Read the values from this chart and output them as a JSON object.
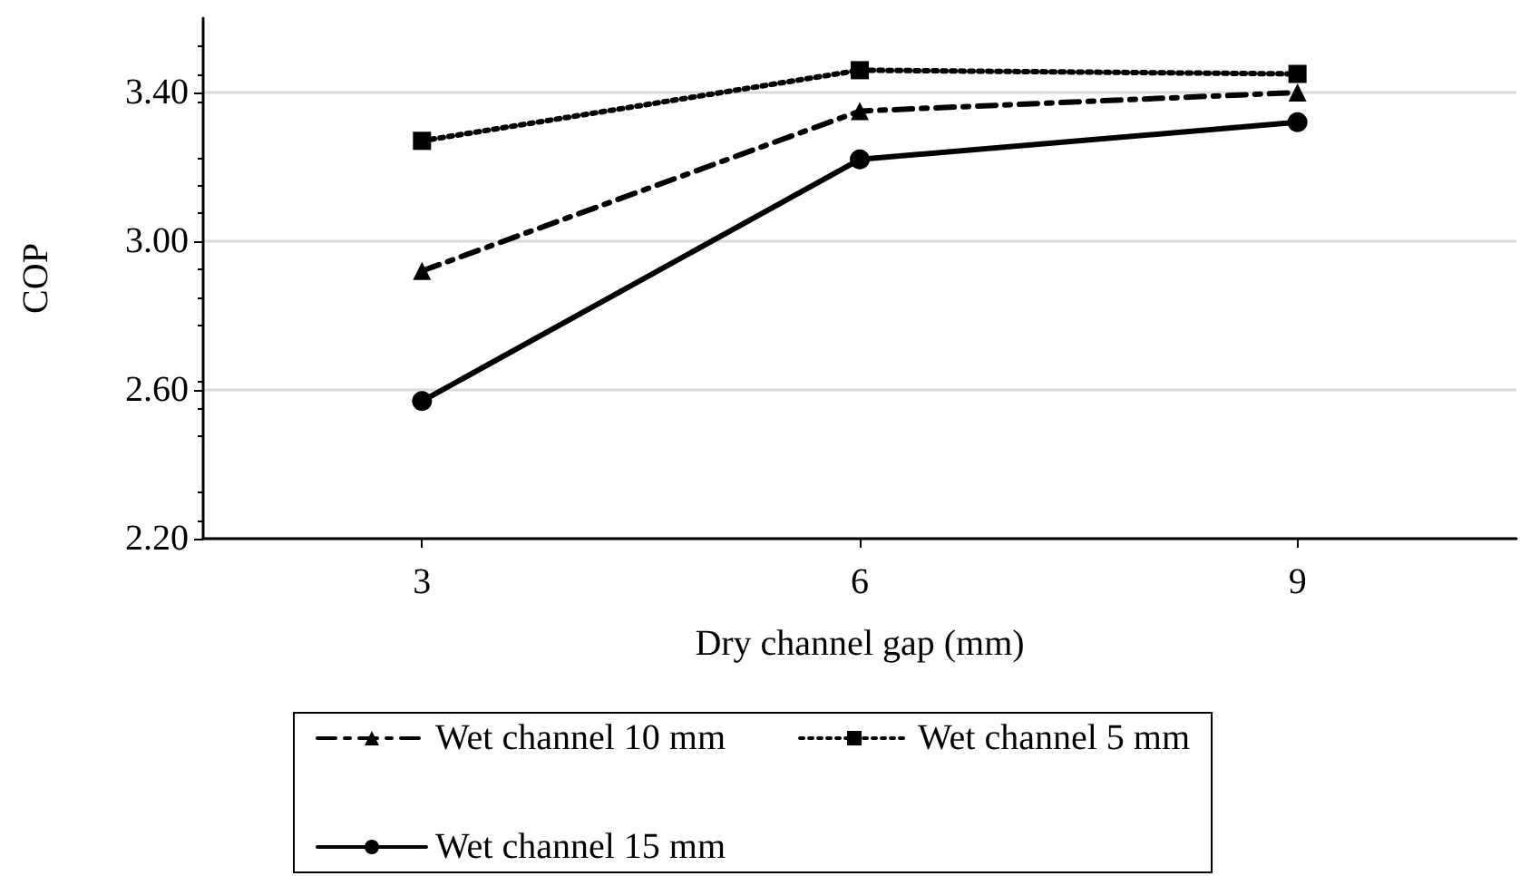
{
  "chart_data": {
    "type": "line",
    "xlabel": "Dry channel gap (mm)",
    "ylabel": "COP",
    "categories": [
      "3",
      "6",
      "9"
    ],
    "series": [
      {
        "name": "Wet channel 10 mm",
        "color": "#000000",
        "values": [
          2.92,
          3.35,
          3.4
        ],
        "marker": "triangle",
        "line_style": "dashed"
      },
      {
        "name": "Wet channel 5 mm",
        "color": "#000000",
        "values": [
          3.27,
          3.46,
          3.45
        ],
        "marker": "square",
        "line_style": "dotted"
      },
      {
        "name": "Wet channel 15 mm",
        "color": "#000000",
        "values": [
          2.57,
          3.22,
          3.32
        ],
        "marker": "circle",
        "line_style": "solid"
      }
    ],
    "ylim": [
      2.2,
      3.6
    ],
    "yticks": [
      {
        "value": 2.2,
        "label": "2.20"
      },
      {
        "value": 2.6,
        "label": "2.60"
      },
      {
        "value": 3.0,
        "label": "3.00"
      },
      {
        "value": 3.4,
        "label": "3.40"
      }
    ],
    "grid": "y",
    "legend": "bottom"
  }
}
